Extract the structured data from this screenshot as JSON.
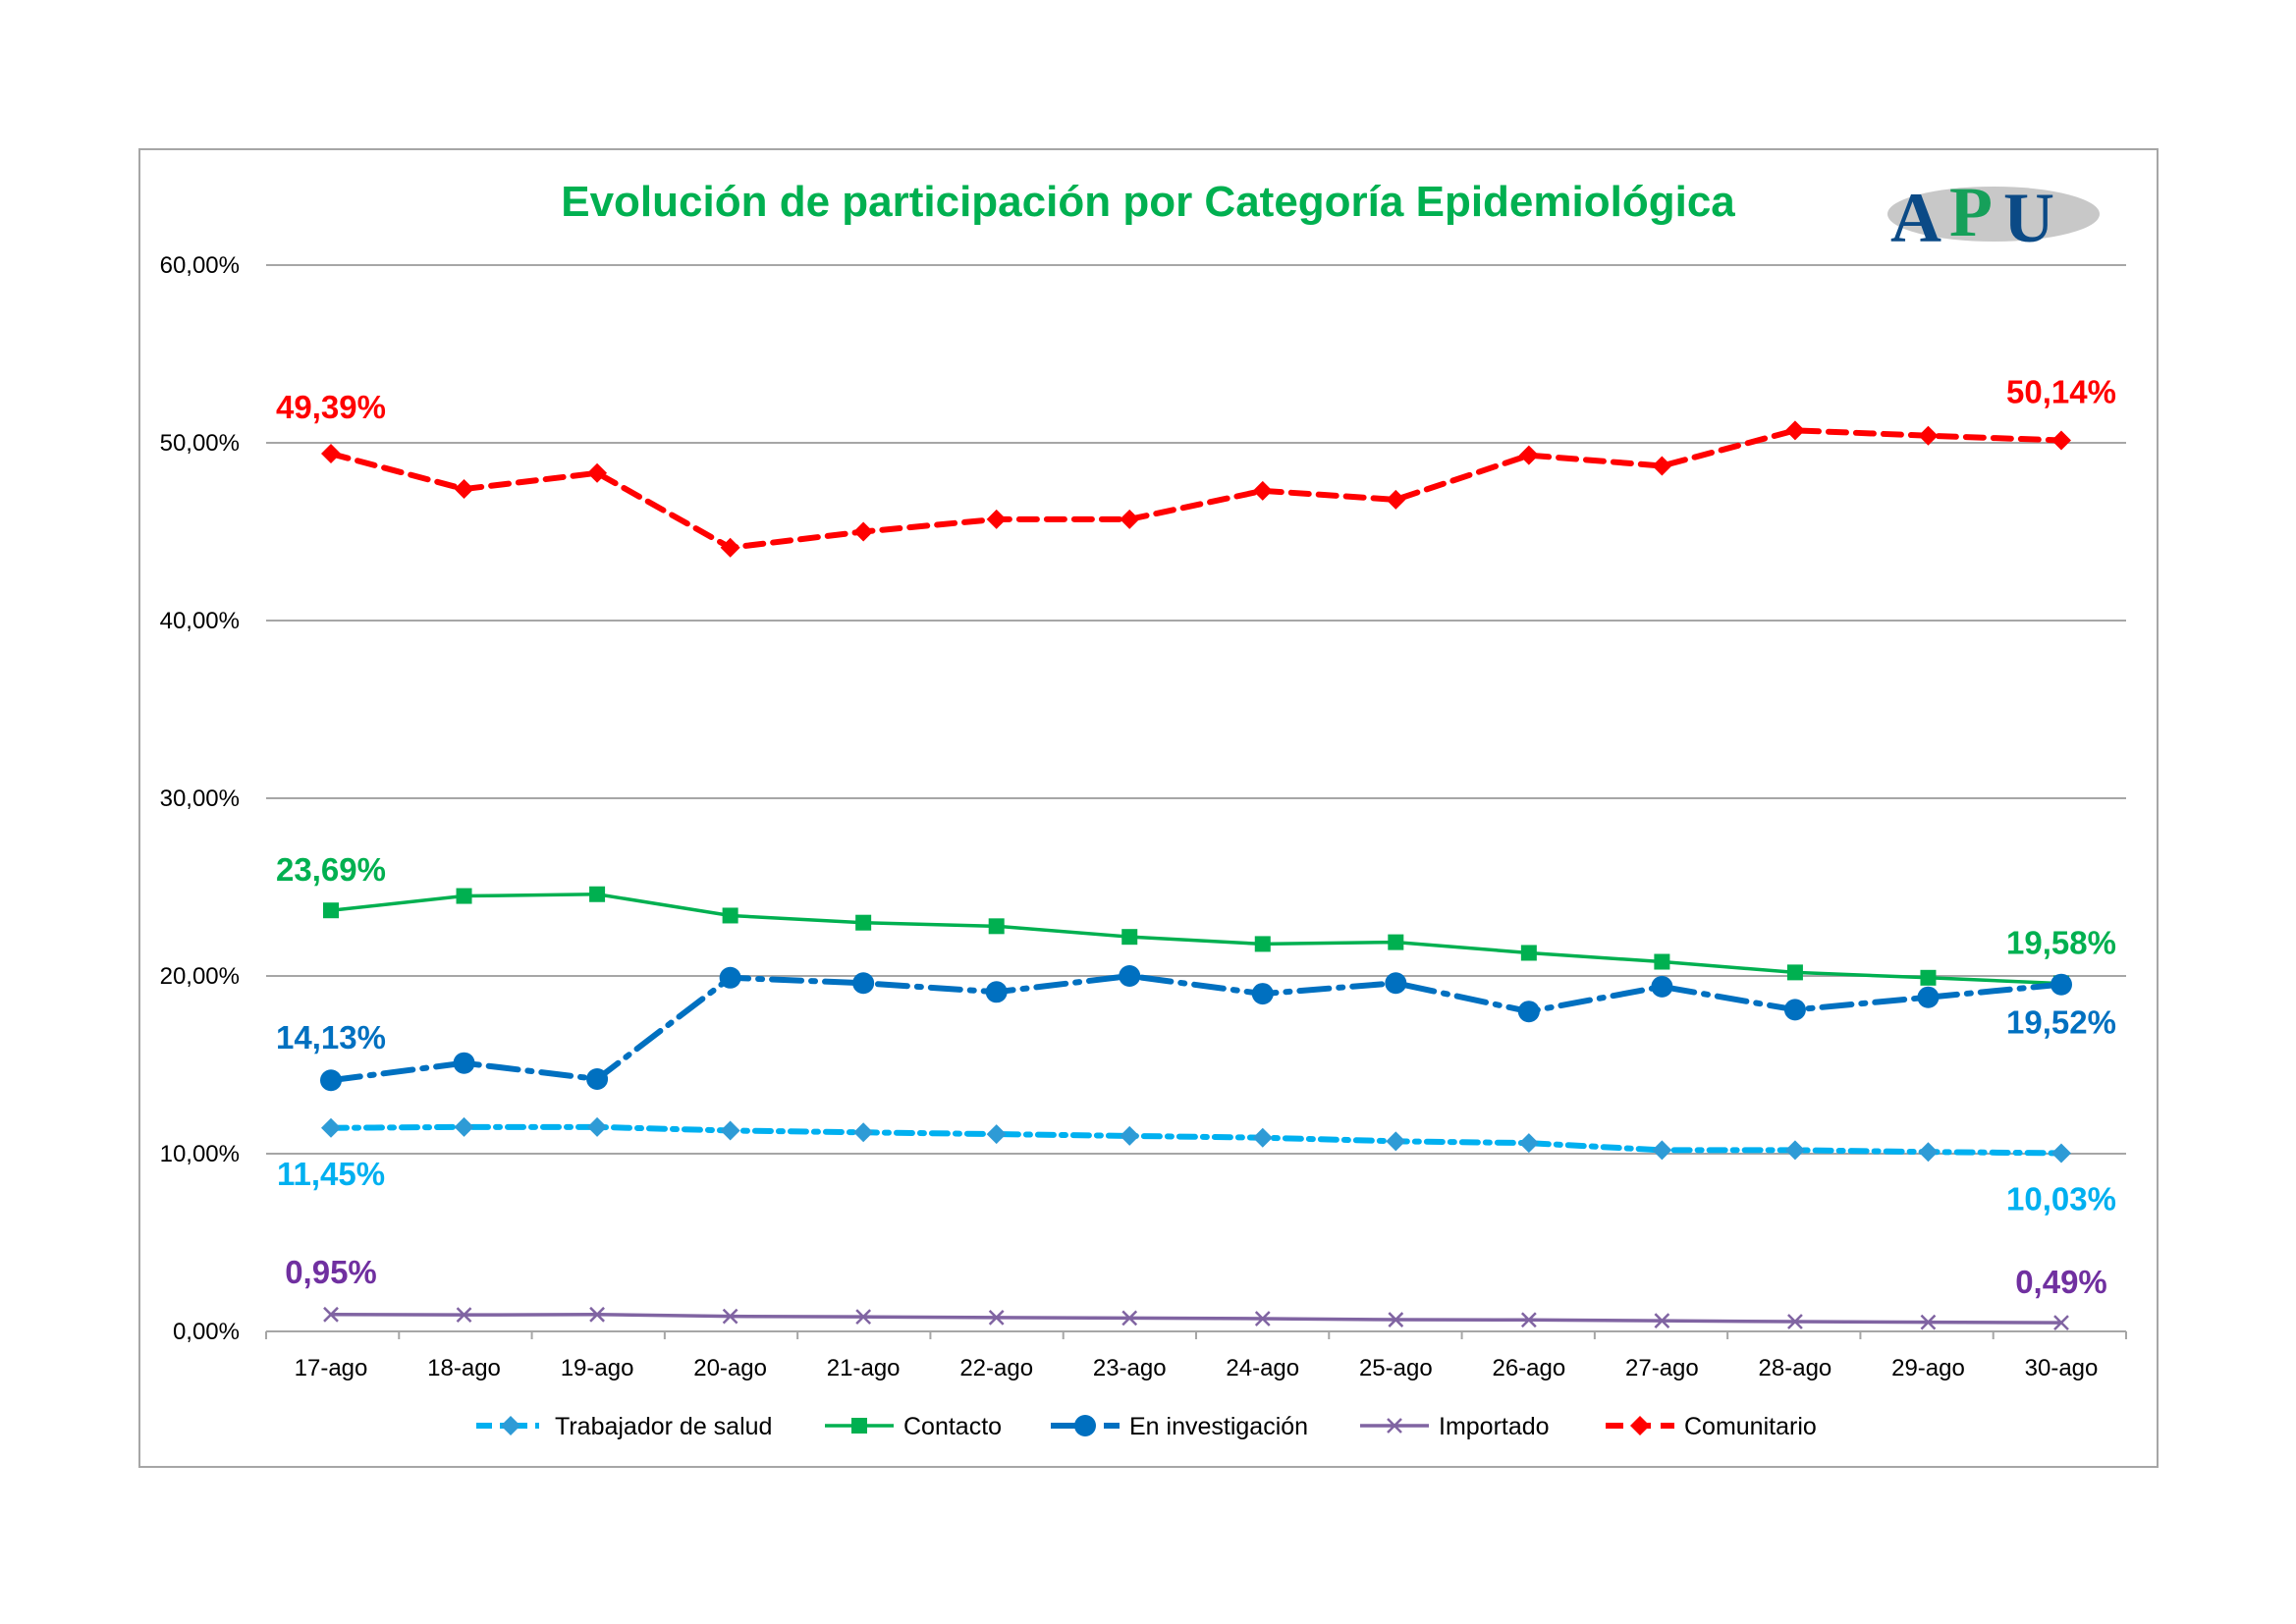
{
  "chart_data": {
    "type": "line",
    "title": "Evolución de participación por Categoría Epidemiológica",
    "logo_text": "APU",
    "xlabel": "",
    "ylabel": "",
    "categories": [
      "17-ago",
      "18-ago",
      "19-ago",
      "20-ago",
      "21-ago",
      "22-ago",
      "23-ago",
      "24-ago",
      "25-ago",
      "26-ago",
      "27-ago",
      "28-ago",
      "29-ago",
      "30-ago"
    ],
    "ylim": [
      0,
      60
    ],
    "yticks": [
      0,
      10,
      20,
      30,
      40,
      50,
      60
    ],
    "ytick_labels": [
      "0,00%",
      "10,00%",
      "20,00%",
      "30,00%",
      "40,00%",
      "50,00%",
      "60,00%"
    ],
    "grid": true,
    "legend_position": "bottom",
    "series": [
      {
        "name": "Trabajador de salud",
        "color": "#00B0F0",
        "marker_color": "#2E9BD6",
        "marker": "diamond",
        "dash": "dash-dot",
        "values": [
          11.45,
          11.5,
          11.5,
          11.3,
          11.2,
          11.1,
          11.0,
          10.9,
          10.7,
          10.6,
          10.2,
          10.2,
          10.1,
          10.03
        ],
        "labels": [
          "11,45%",
          "10,03%"
        ]
      },
      {
        "name": "Contacto",
        "color": "#00B050",
        "marker_color": "#00B050",
        "marker": "square",
        "dash": "solid",
        "values": [
          23.69,
          24.5,
          24.6,
          23.4,
          23.0,
          22.8,
          22.2,
          21.8,
          21.9,
          21.3,
          20.8,
          20.2,
          19.9,
          19.58
        ],
        "labels": [
          "23,69%",
          "19,58%"
        ]
      },
      {
        "name": "En investigación",
        "color": "#0070C0",
        "marker_color": "#0070C0",
        "marker": "circle",
        "dash": "long-dash-dot",
        "values": [
          14.13,
          15.1,
          14.2,
          19.9,
          19.6,
          19.1,
          20.0,
          19.0,
          19.6,
          18.0,
          19.4,
          18.1,
          18.8,
          19.52
        ],
        "labels": [
          "14,13%",
          "19,52%"
        ]
      },
      {
        "name": "Importado",
        "color": "#8064A2",
        "marker_color": "#8064A2",
        "marker": "x",
        "dash": "solid",
        "values": [
          0.95,
          0.93,
          0.95,
          0.85,
          0.82,
          0.78,
          0.75,
          0.72,
          0.66,
          0.65,
          0.6,
          0.55,
          0.52,
          0.49
        ],
        "labels": [
          "0,95%",
          "0,49%"
        ],
        "label_color": "#7030A0"
      },
      {
        "name": "Comunitario",
        "color": "#FF0000",
        "marker_color": "#FF0000",
        "marker": "diamond",
        "dash": "dash",
        "values": [
          49.39,
          47.4,
          48.3,
          44.1,
          45.0,
          45.7,
          45.7,
          47.3,
          46.8,
          49.3,
          48.7,
          50.7,
          50.4,
          50.14
        ],
        "labels": [
          "49,39%",
          "50,14%"
        ]
      }
    ]
  }
}
